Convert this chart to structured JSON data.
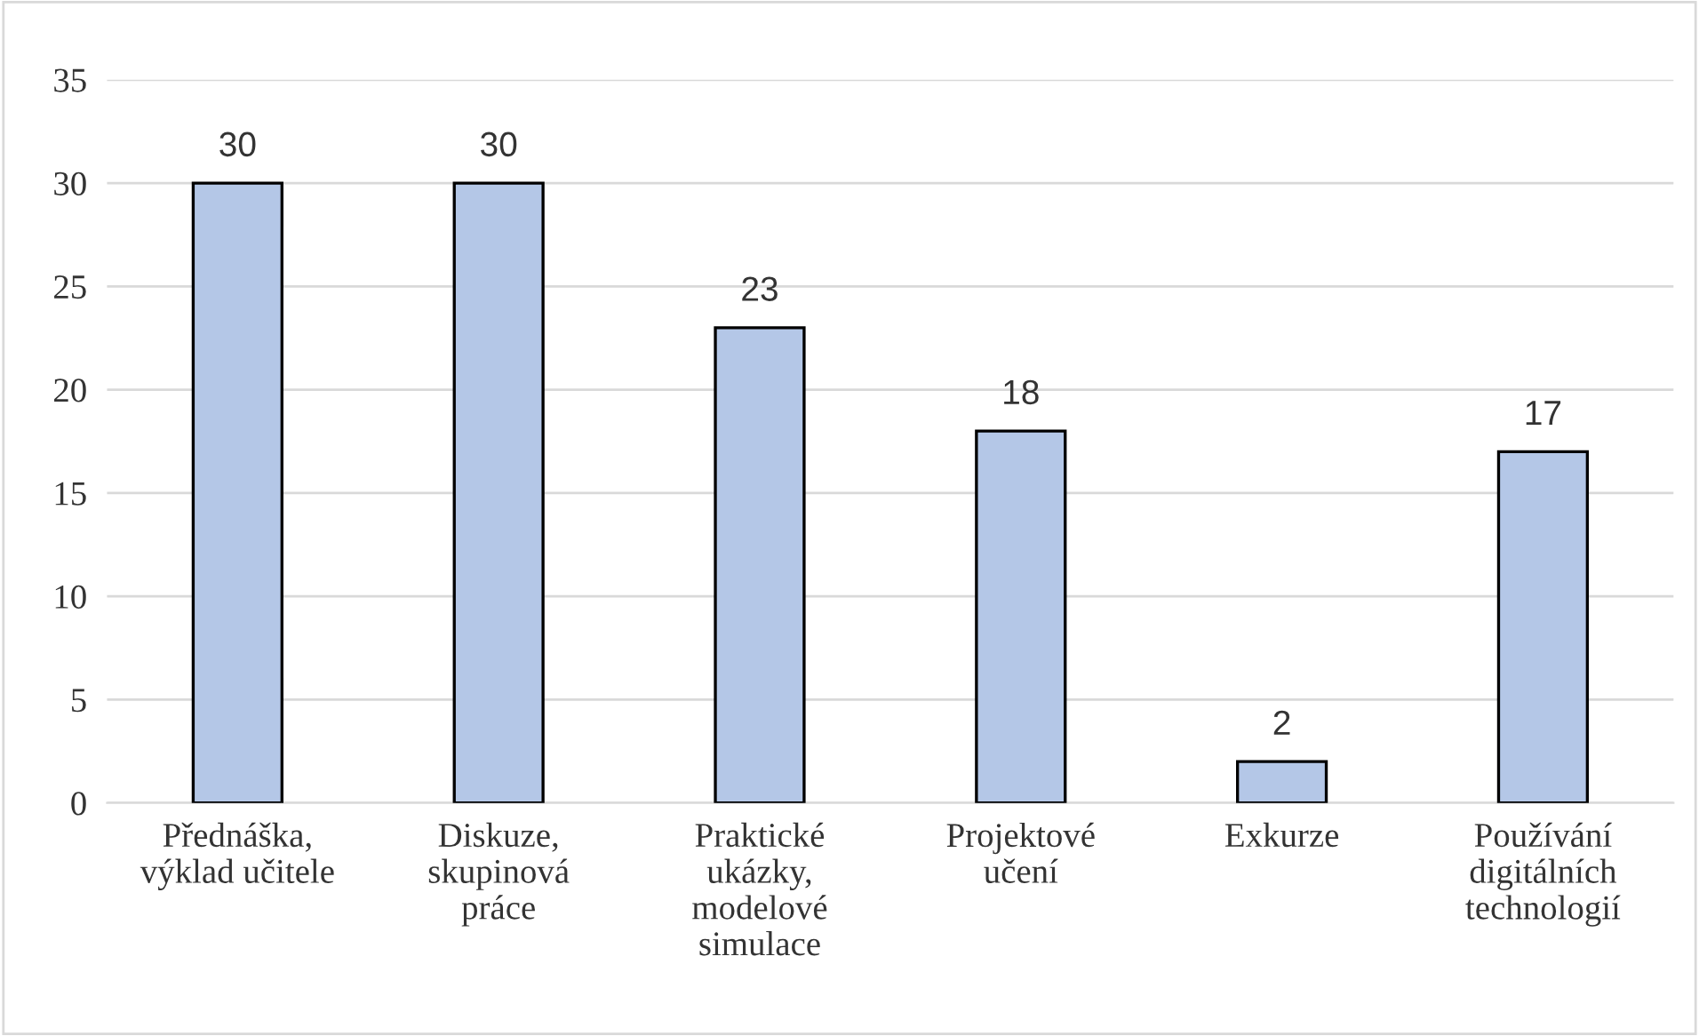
{
  "chart_data": {
    "type": "bar",
    "categories": [
      "Přednáška,\nvýklad učitele",
      "Diskuze,\nskupinová\npráce",
      "Praktické\nukázky,\nmodelové\nsimulace",
      "Projektové\nučení",
      "Exkurze",
      "Používání\ndigitálních\ntechnologií"
    ],
    "values": [
      30,
      30,
      23,
      18,
      2,
      17
    ],
    "color": "#b4c7e7",
    "ylim": [
      0,
      35
    ],
    "yticks": [
      0,
      5,
      10,
      15,
      20,
      25,
      30,
      35
    ],
    "grid": "y",
    "data_labels": true
  }
}
